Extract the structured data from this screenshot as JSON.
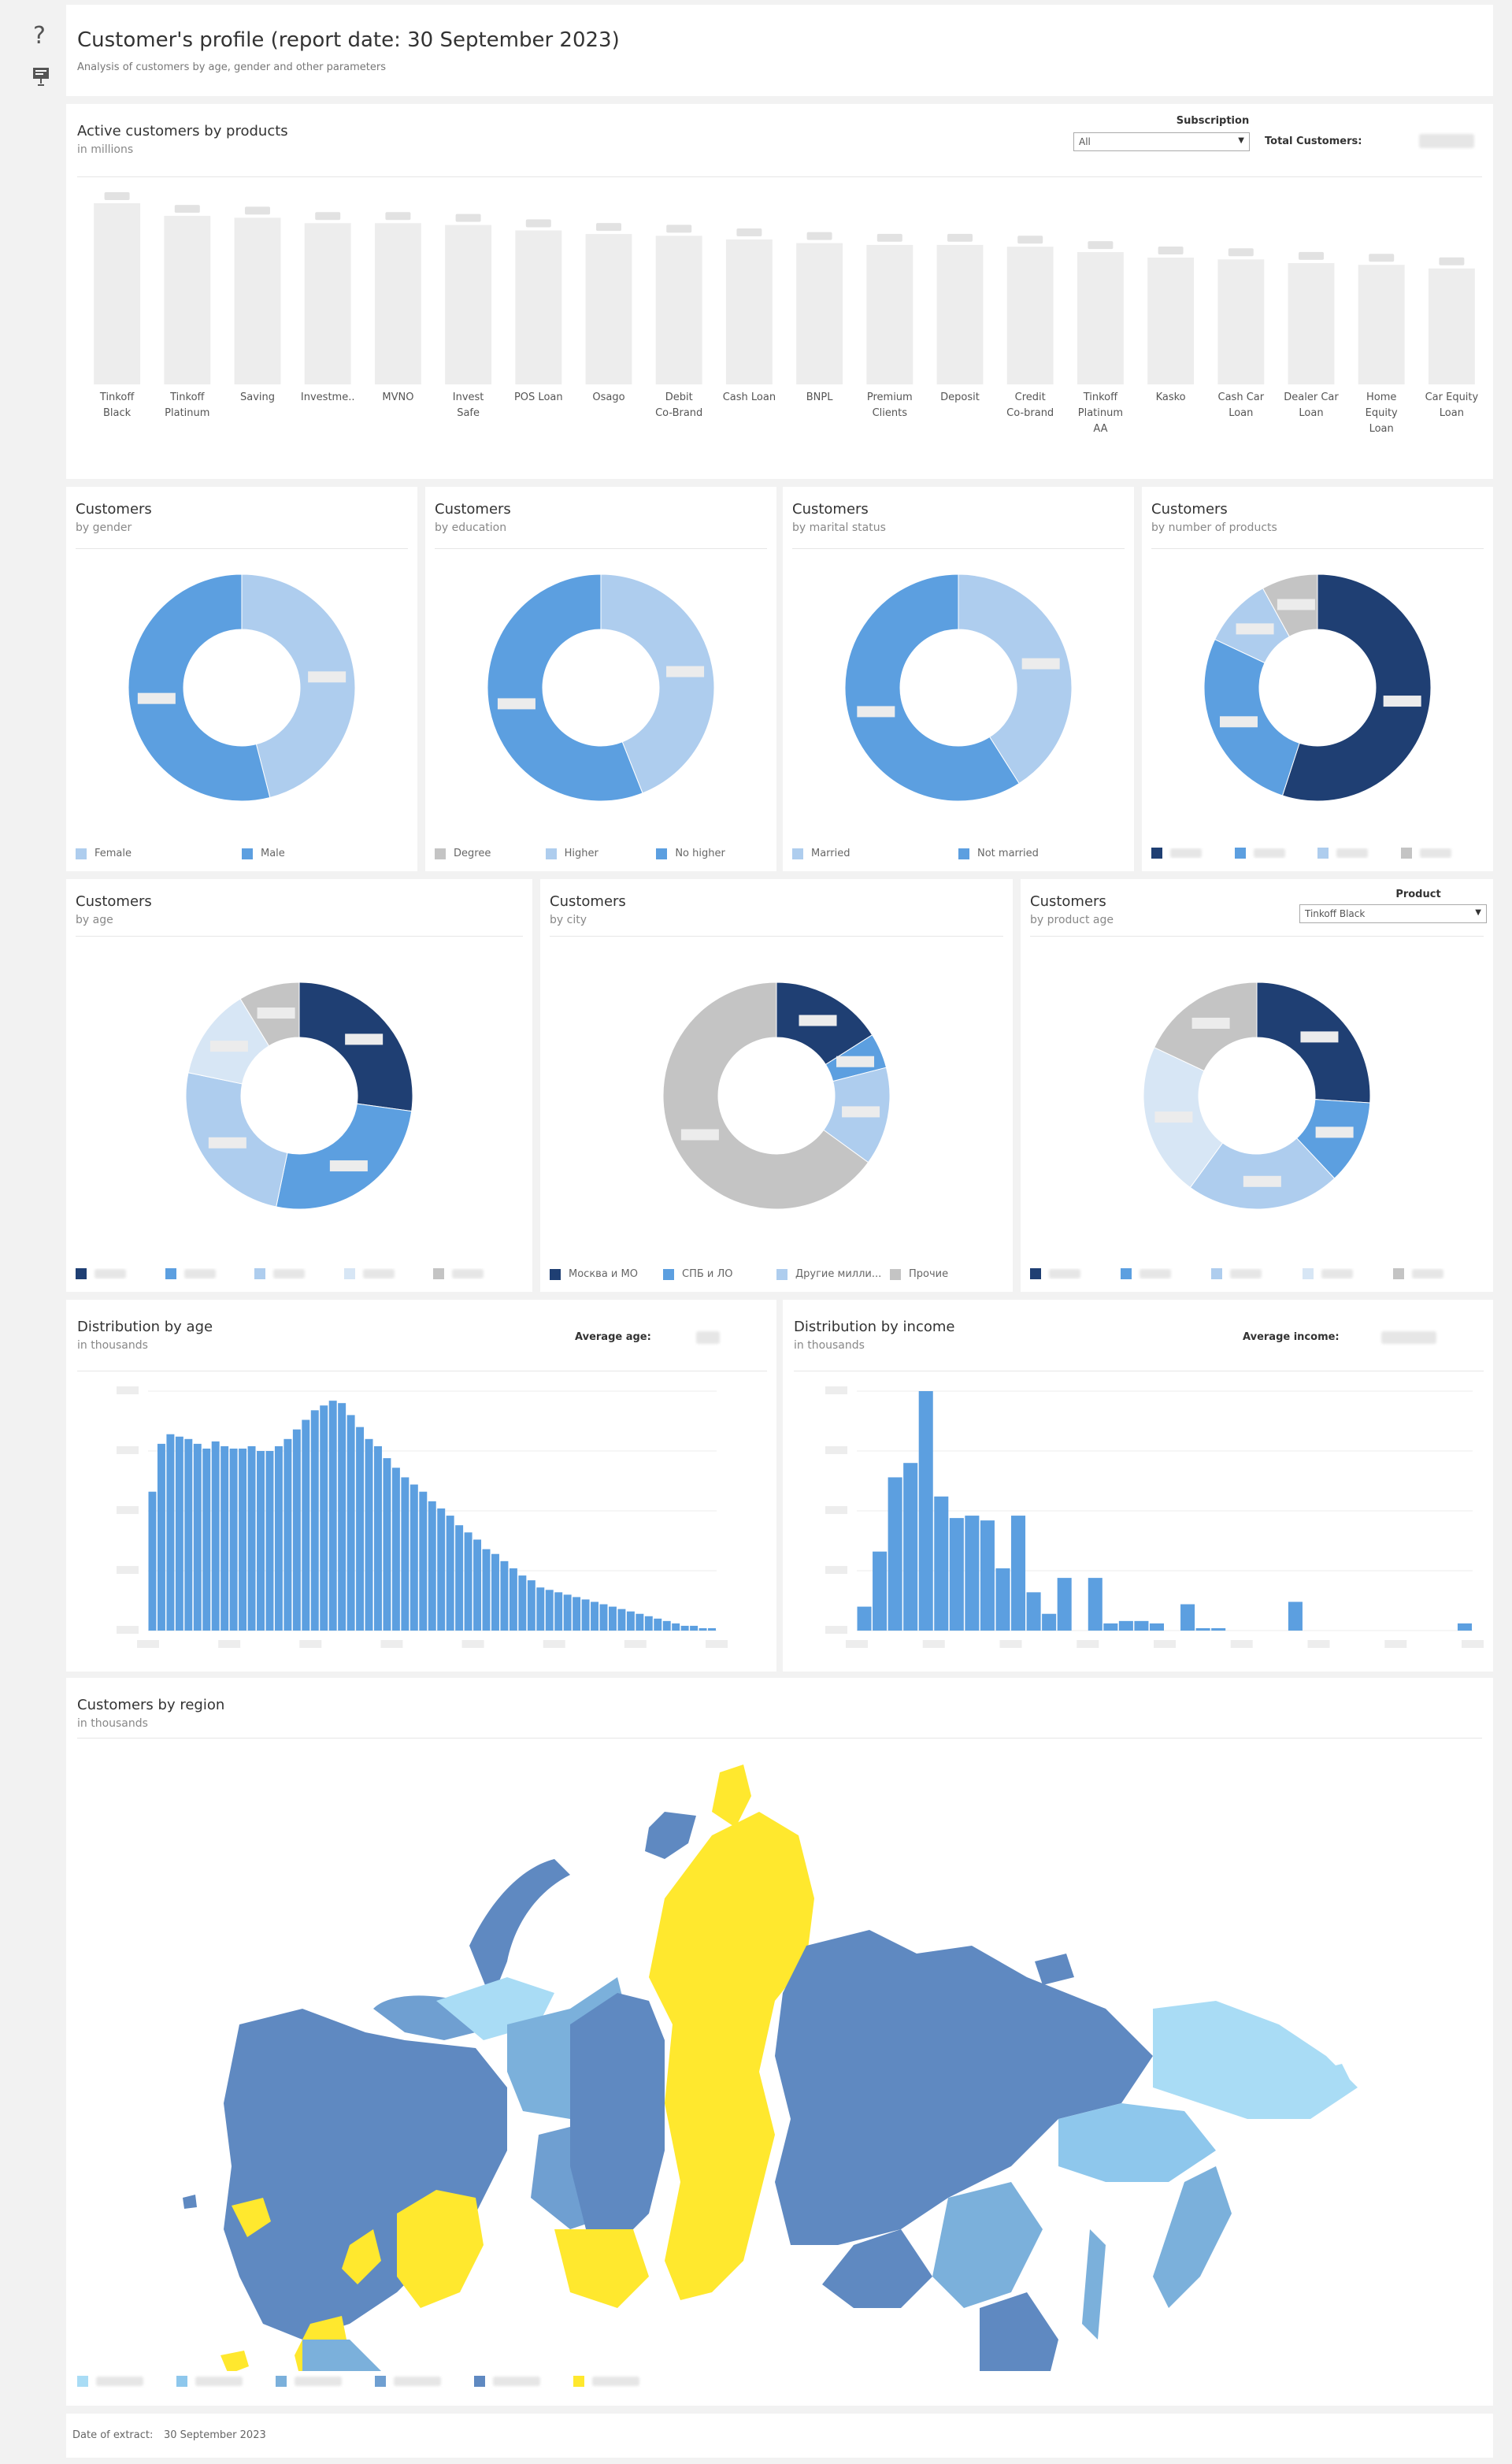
{
  "header": {
    "title": "Customer's profile (report date: 30 September 2023)",
    "subtitle": "Analysis of customers by age, gender and other parameters",
    "help_icon": "question-mark-icon",
    "present_icon": "presentation-icon"
  },
  "products": {
    "title": "Active customers by products",
    "subtitle": "in millions",
    "filter_label": "Subscription",
    "filter_value": "All",
    "total_label": "Total Customers:",
    "chart_data": {
      "type": "bar",
      "categories": [
        "Tinkoff Black",
        "Tinkoff Platinum",
        "Saving",
        "Investme..",
        "MVNO",
        "Invest Safe",
        "POS Loan",
        "Osago",
        "Debit Co-Brand",
        "Cash Loan",
        "BNPL",
        "Premium Clients",
        "Deposit",
        "Credit Co-brand",
        "Tinkoff Platinum AA",
        "Kasko",
        "Cash Car Loan",
        "Dealer Car Loan",
        "Home Equity Loan",
        "Car Equity Loan"
      ],
      "values": [
        100,
        93,
        92,
        89,
        89,
        88,
        85,
        83,
        82,
        80,
        78,
        77,
        77,
        76,
        73,
        70,
        69,
        67,
        66,
        64
      ],
      "value_labels_visible": false,
      "ylim": [
        0,
        100
      ]
    }
  },
  "donuts_row1": [
    {
      "title": "Customers",
      "subtitle": "by gender",
      "chart_data": {
        "type": "pie",
        "categories": [
          "Female",
          "Male"
        ],
        "values": [
          0.46,
          0.54
        ],
        "colors": [
          "#aecdee",
          "#5c9fe0"
        ]
      },
      "legend": [
        {
          "label": "Female",
          "color": "#aecdee"
        },
        {
          "label": "Male",
          "color": "#5c9fe0"
        }
      ]
    },
    {
      "title": "Customers",
      "subtitle": "by education",
      "chart_data": {
        "type": "pie",
        "categories": [
          "Degree",
          "Higher",
          "No higher"
        ],
        "values": [
          0.0,
          0.44,
          0.56
        ],
        "colors": [
          "#c4c4c4",
          "#aecdee",
          "#5c9fe0"
        ]
      },
      "legend": [
        {
          "label": "Degree",
          "color": "#c4c4c4"
        },
        {
          "label": "Higher",
          "color": "#aecdee"
        },
        {
          "label": "No higher",
          "color": "#5c9fe0"
        }
      ]
    },
    {
      "title": "Customers",
      "subtitle": "by marital status",
      "chart_data": {
        "type": "pie",
        "categories": [
          "Married",
          "Not married"
        ],
        "values": [
          0.41,
          0.59
        ],
        "colors": [
          "#aecdee",
          "#5c9fe0"
        ]
      },
      "legend": [
        {
          "label": "Married",
          "color": "#aecdee"
        },
        {
          "label": "Not married",
          "color": "#5c9fe0"
        }
      ]
    },
    {
      "title": "Customers",
      "subtitle": "by number of products",
      "chart_data": {
        "type": "pie",
        "categories": [
          "",
          "",
          "",
          ""
        ],
        "values": [
          0.55,
          0.27,
          0.1,
          0.08
        ],
        "colors": [
          "#1f3f73",
          "#5c9fe0",
          "#aecdee",
          "#c4c4c4"
        ]
      },
      "legend": [
        {
          "label": "",
          "color": "#1f3f73"
        },
        {
          "label": "",
          "color": "#5c9fe0"
        },
        {
          "label": "",
          "color": "#aecdee"
        },
        {
          "label": "",
          "color": "#c4c4c4"
        }
      ]
    }
  ],
  "donuts_row2": [
    {
      "title": "Customers",
      "subtitle": "by age",
      "chart_data": {
        "type": "pie",
        "categories": [
          "",
          "",
          "",
          "",
          ""
        ],
        "values": [
          0.25,
          0.24,
          0.23,
          0.12,
          0.08
        ],
        "colors": [
          "#1f3f73",
          "#5c9fe0",
          "#aecdee",
          "#d7e6f5",
          "#c4c4c4"
        ]
      },
      "legend": [
        {
          "label": "",
          "color": "#1f3f73"
        },
        {
          "label": "",
          "color": "#5c9fe0"
        },
        {
          "label": "",
          "color": "#aecdee"
        },
        {
          "label": "",
          "color": "#d7e6f5"
        },
        {
          "label": "",
          "color": "#c4c4c4"
        }
      ]
    },
    {
      "title": "Customers",
      "subtitle": "by city",
      "chart_data": {
        "type": "pie",
        "categories": [
          "Москва и МО",
          "СПБ и ЛО",
          "Другие милли...",
          "Прочие"
        ],
        "values": [
          0.16,
          0.05,
          0.14,
          0.65
        ],
        "colors": [
          "#1f3f73",
          "#5c9fe0",
          "#aecdee",
          "#c4c4c4"
        ]
      },
      "legend": [
        {
          "label": "Москва и МО",
          "color": "#1f3f73"
        },
        {
          "label": "СПБ и ЛО",
          "color": "#5c9fe0"
        },
        {
          "label": "Другие милли...",
          "color": "#aecdee"
        },
        {
          "label": "Прочие",
          "color": "#c4c4c4"
        }
      ]
    },
    {
      "title": "Customers",
      "subtitle": "by product age",
      "filter_label": "Product",
      "filter_value": "Tinkoff Black",
      "chart_data": {
        "type": "pie",
        "categories": [
          "",
          "",
          "",
          "",
          ""
        ],
        "values": [
          0.26,
          0.12,
          0.22,
          0.22,
          0.18
        ],
        "colors": [
          "#1f3f73",
          "#5c9fe0",
          "#aecdee",
          "#d7e6f5",
          "#c4c4c4"
        ]
      },
      "legend": [
        {
          "label": "",
          "color": "#1f3f73"
        },
        {
          "label": "",
          "color": "#5c9fe0"
        },
        {
          "label": "",
          "color": "#aecdee"
        },
        {
          "label": "",
          "color": "#d7e6f5"
        },
        {
          "label": "",
          "color": "#c4c4c4"
        }
      ]
    }
  ],
  "dist_age": {
    "title": "Distribution by age",
    "subtitle": "in thousands",
    "avg_label": "Average age:",
    "chart_data": {
      "type": "bar",
      "x": [
        18,
        19,
        20,
        21,
        22,
        23,
        24,
        25,
        26,
        27,
        28,
        29,
        30,
        31,
        32,
        33,
        34,
        35,
        36,
        37,
        38,
        39,
        40,
        41,
        42,
        43,
        44,
        45,
        46,
        47,
        48,
        49,
        50,
        51,
        52,
        53,
        54,
        55,
        56,
        57,
        58,
        59,
        60,
        61,
        62,
        63,
        64,
        65,
        66,
        67,
        68,
        69,
        70,
        71,
        72,
        73,
        74,
        75,
        76,
        77,
        78,
        79,
        80
      ],
      "values": [
        0.58,
        0.78,
        0.82,
        0.81,
        0.8,
        0.78,
        0.76,
        0.79,
        0.77,
        0.76,
        0.76,
        0.77,
        0.75,
        0.75,
        0.77,
        0.8,
        0.84,
        0.88,
        0.92,
        0.94,
        0.96,
        0.95,
        0.9,
        0.85,
        0.8,
        0.77,
        0.72,
        0.68,
        0.64,
        0.61,
        0.58,
        0.54,
        0.51,
        0.48,
        0.44,
        0.41,
        0.38,
        0.34,
        0.32,
        0.29,
        0.26,
        0.23,
        0.21,
        0.18,
        0.17,
        0.16,
        0.15,
        0.14,
        0.13,
        0.12,
        0.11,
        0.1,
        0.09,
        0.08,
        0.07,
        0.06,
        0.05,
        0.04,
        0.03,
        0.02,
        0.02,
        0.01,
        0.01
      ],
      "ylim": [
        0,
        1
      ],
      "tick_labels_visible": false
    }
  },
  "dist_income": {
    "title": "Distribution by income",
    "subtitle": "in thousands",
    "avg_label": "Average income:",
    "chart_data": {
      "type": "bar",
      "x": [
        1,
        2,
        3,
        4,
        5,
        6,
        7,
        8,
        9,
        10,
        11,
        12,
        13,
        14,
        15,
        16,
        17,
        18,
        19,
        20,
        21,
        22,
        23,
        24,
        25,
        26,
        27,
        28,
        29,
        30,
        31,
        32,
        33,
        34,
        35,
        36,
        37,
        38,
        39,
        40
      ],
      "values": [
        0.1,
        0.33,
        0.64,
        0.7,
        1.0,
        0.56,
        0.47,
        0.48,
        0.46,
        0.26,
        0.48,
        0.16,
        0.07,
        0.22,
        0.0,
        0.22,
        0.03,
        0.04,
        0.04,
        0.03,
        0.0,
        0.11,
        0.01,
        0.01,
        0.0,
        0.0,
        0.0,
        0.0,
        0.12,
        0.0,
        0.0,
        0.0,
        0.0,
        0.0,
        0.0,
        0.0,
        0.0,
        0.0,
        0.0,
        0.03
      ],
      "ylim": [
        0,
        1
      ],
      "tick_labels_visible": false
    }
  },
  "region": {
    "title": "Customers by region",
    "subtitle": "in thousands",
    "legend_colors": [
      "#a9dcf5",
      "#8ec7ec",
      "#7bb0db",
      "#6f9fd1",
      "#5f89c1",
      "#ffe82e"
    ]
  },
  "footer": {
    "label": "Date of extract:",
    "value": "30 September 2023"
  }
}
